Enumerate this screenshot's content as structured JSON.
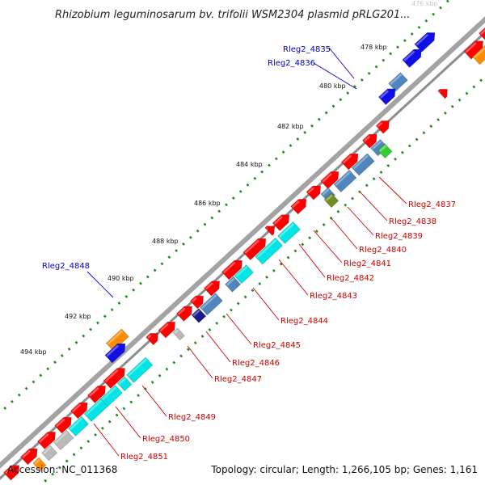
{
  "title": "Rhizobium leguminosarum bv. trifolii WSM2304 plasmid pRLG201...",
  "footer": {
    "accession": "Accession: NC_011368",
    "topology": "Topology: circular; Length: 1,266,105 bp; Genes: 1,161"
  },
  "colors": {
    "forward_gene": "#ff0000",
    "blue_gene": "#1010e6",
    "steel_gene": "#4f86bd",
    "orange_gene": "#ff8c00",
    "cyan_gene": "#00e5e5",
    "grey_gene": "#b9b9b9",
    "green_gene": "#33cc33",
    "olive_gene": "#6f8e23",
    "navy_gene": "#1a1a8c",
    "label_reverse": "#cc0000",
    "label_forward": "#0000cc",
    "scale_dot": "#228b22",
    "backbone": "#999999"
  },
  "kbp_ticks": [
    {
      "label": "476 kbp",
      "faded": true
    },
    {
      "label": "478 kbp"
    },
    {
      "label": "480 kbp"
    },
    {
      "label": "482 kbp"
    },
    {
      "label": "484 kbp"
    },
    {
      "label": "486 kbp"
    },
    {
      "label": "488 kbp"
    },
    {
      "label": "490 kbp"
    },
    {
      "label": "492 kbp"
    },
    {
      "label": "494 kbp"
    }
  ],
  "gene_labels_forward": [
    "Rleg2_4835",
    "Rleg2_4836",
    "Rleg2_4848"
  ],
  "gene_labels_reverse": [
    "Rleg2_4837",
    "Rleg2_4838",
    "Rleg2_4839",
    "Rleg2_4840",
    "Rleg2_4841",
    "Rleg2_4842",
    "Rleg2_4843",
    "Rleg2_4844",
    "Rleg2_4845",
    "Rleg2_4846",
    "Rleg2_4847",
    "Rleg2_4849",
    "Rleg2_4850",
    "Rleg2_4851"
  ]
}
